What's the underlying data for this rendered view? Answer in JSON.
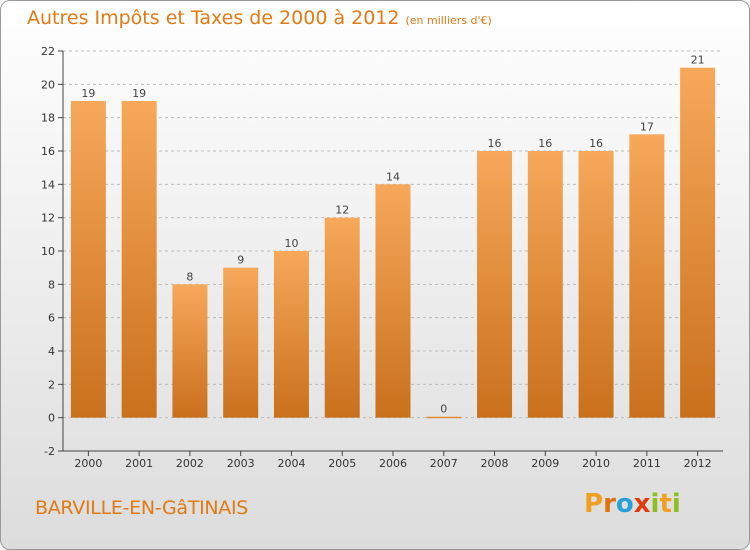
{
  "header": {
    "title": "Autres Impôts et Taxes de 2000 à 2012",
    "subtitle": "(en milliers d'€)"
  },
  "footer": {
    "commune": "BARVILLE-EN-GâTINAIS",
    "logo_text": "Proxiti",
    "logo_letters": [
      {
        "ch": "P",
        "color": "#f0a020"
      },
      {
        "ch": "r",
        "color": "#e07010"
      },
      {
        "ch": "o",
        "color": "#2aa0d8"
      },
      {
        "ch": "x",
        "color": "#e03a10"
      },
      {
        "ch": "i",
        "color": "#8cc020"
      },
      {
        "ch": "t",
        "color": "#f0a020"
      },
      {
        "ch": "i",
        "color": "#8cc020"
      }
    ]
  },
  "colors": {
    "bar_top": "#f7a85a",
    "bar_bottom": "#c9701c",
    "accent": "#e07a14",
    "grid": "#bdbdbd"
  },
  "chart_data": {
    "type": "bar",
    "categories": [
      "2000",
      "2001",
      "2002",
      "2003",
      "2004",
      "2005",
      "2006",
      "2007",
      "2008",
      "2009",
      "2010",
      "2011",
      "2012"
    ],
    "values": [
      19,
      19,
      8,
      9,
      10,
      12,
      14,
      0,
      16,
      16,
      16,
      17,
      21
    ],
    "ylim": [
      -2,
      22
    ],
    "yticks": [
      -2,
      0,
      2,
      4,
      6,
      8,
      10,
      12,
      14,
      16,
      18,
      20,
      22
    ],
    "grid": true,
    "grid_style": "dashed-horizontal",
    "legend": "none"
  }
}
